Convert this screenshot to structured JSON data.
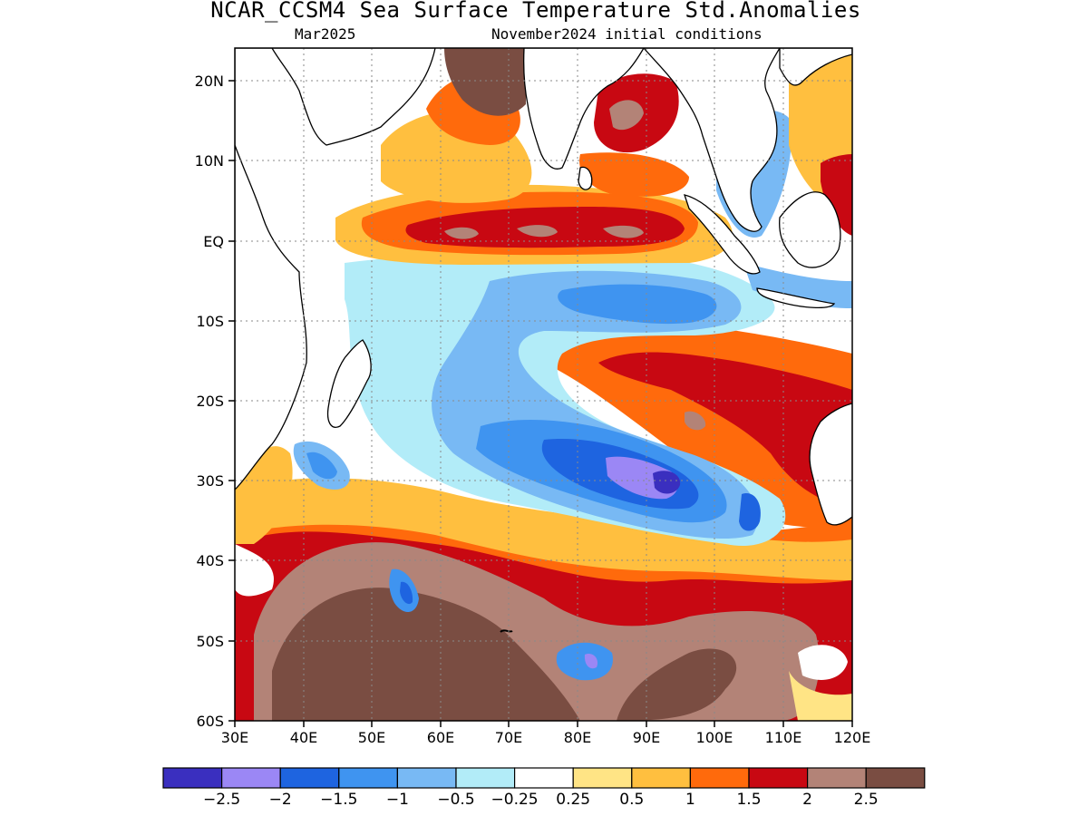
{
  "title": "NCAR_CCSM4 Sea Surface Temperature Std.Anomalies",
  "subtitle_left": "Mar2025",
  "subtitle_right": "November2024 initial conditions",
  "map": {
    "lat_labels": [
      "20N",
      "10N",
      "EQ",
      "10S",
      "20S",
      "30S",
      "40S",
      "50S",
      "60S"
    ],
    "lon_labels": [
      "30E",
      "40E",
      "50E",
      "60E",
      "70E",
      "80E",
      "90E",
      "100E",
      "110E",
      "120E"
    ],
    "lat_values": [
      20,
      10,
      0,
      -10,
      -20,
      -30,
      -40,
      -50,
      -60
    ],
    "lon_values": [
      30,
      40,
      50,
      60,
      70,
      80,
      90,
      100,
      110,
      120
    ],
    "lat_range": [
      -60,
      24
    ],
    "lon_range": [
      30,
      120
    ]
  },
  "colorbar": {
    "colors": [
      "#3a2fbf",
      "#9b87f5",
      "#1e64e0",
      "#3f94f0",
      "#78b9f4",
      "#b2ecf8",
      "#ffffff",
      "#ffe485",
      "#ffbf3f",
      "#ff6a0c",
      "#c80812",
      "#b38377",
      "#7a4d42"
    ],
    "labels": [
      "−2.5",
      "−2",
      "−1.5",
      "−1",
      "−0.5",
      "−0.25",
      "0.25",
      "0.5",
      "1",
      "1.5",
      "2",
      "2.5"
    ]
  }
}
